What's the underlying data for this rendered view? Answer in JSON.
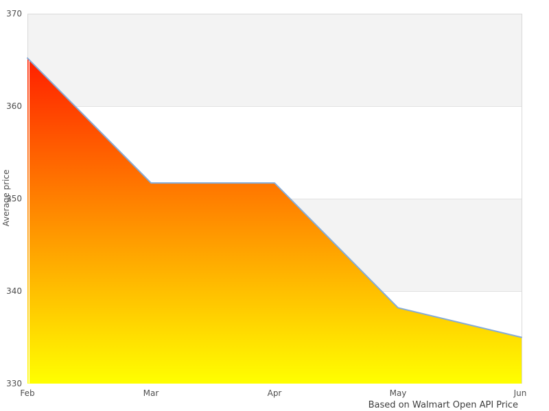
{
  "chart_data": {
    "type": "area",
    "x": [
      "Feb",
      "Mar",
      "Apr",
      "May",
      "Jun"
    ],
    "series": [
      {
        "name": "Average price",
        "values": [
          365.2,
          351.7,
          351.7,
          338.2,
          335.0
        ]
      }
    ],
    "title": "",
    "xlabel": "",
    "ylabel": "Average price",
    "caption": "Based on Walmart Open API Price",
    "ylim": [
      330,
      370
    ],
    "yticks": [
      330,
      340,
      350,
      360,
      370
    ],
    "legend": "none",
    "grid": "alternating-horizontal-bands",
    "colors": {
      "band_fill": "#f3f3f3",
      "gridline": "#e2e2e2",
      "plot_border": "#d9d9d9",
      "line_stroke": "#84abd8",
      "area_gradient_top": "#ff0000",
      "area_gradient_bottom": "#ffff00",
      "tick_text": "#4d4d4d",
      "caption_text": "#3d3d3d",
      "background": "#ffffff"
    }
  }
}
